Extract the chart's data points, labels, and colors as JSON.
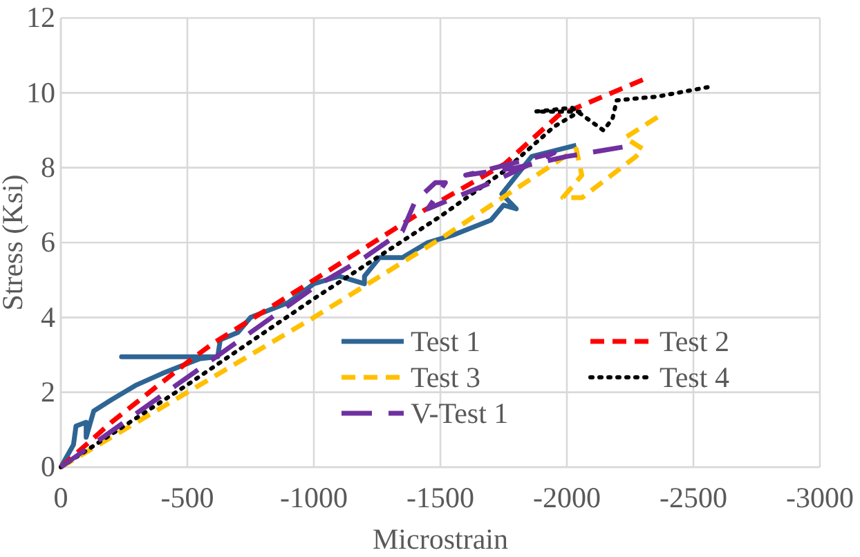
{
  "chart_data": {
    "type": "line",
    "xlabel": "Microstrain",
    "ylabel": "Stress (Ksi)",
    "xlim": [
      0,
      -3000
    ],
    "xticks": [
      0,
      -500,
      -1000,
      -1500,
      -2000,
      -2500,
      -3000
    ],
    "ylim": [
      0,
      12
    ],
    "yticks": [
      0,
      2,
      4,
      6,
      8,
      10,
      12
    ],
    "grid": true,
    "legend": "bottom right",
    "marker": "none",
    "series": [
      {
        "name": "Test 1",
        "color": "#2e6594",
        "line_style": "solid",
        "x": [
          0,
          -50,
          -60,
          -100,
          -100,
          -130,
          -200,
          -300,
          -400,
          -550,
          -620,
          -240,
          -620,
          -630,
          -700,
          -750,
          -900,
          -1000,
          -1100,
          -1150,
          -1200,
          -1200,
          -1260,
          -1350,
          -1450,
          -1550,
          -1700,
          -1750,
          -1800,
          -1743,
          -1861,
          -2037
        ],
        "values": [
          0,
          0.6,
          1.1,
          1.2,
          0.8,
          1.5,
          1.8,
          2.2,
          2.5,
          2.9,
          2.95,
          2.95,
          2.95,
          3.4,
          3.6,
          4.0,
          4.4,
          4.9,
          5.1,
          5.0,
          4.9,
          5.1,
          5.6,
          5.6,
          6.0,
          6.2,
          6.6,
          7.0,
          6.9,
          7.3,
          8.3,
          8.6
        ]
      },
      {
        "name": "Test 2",
        "color": "#ff0000",
        "line_style": "dashed",
        "x": [
          0,
          -200,
          -500,
          -600,
          -1000,
          -1433,
          -1754,
          -1967,
          -2300
        ],
        "values": [
          0,
          1.2,
          2.8,
          3.3,
          5.0,
          6.85,
          8.1,
          9.4,
          10.35
        ]
      },
      {
        "name": "Test 3",
        "color": "#ffc000",
        "line_style": "dashed",
        "x": [
          0,
          -500,
          -1000,
          -1500,
          -2037,
          -2059,
          -1984,
          -2060,
          -2273,
          -2300,
          -2230,
          -2358
        ],
        "values": [
          0,
          2.0,
          4.0,
          6.1,
          8.5,
          7.8,
          7.2,
          7.2,
          8.3,
          8.5,
          8.8,
          9.35
        ]
      },
      {
        "name": "Test 4",
        "color": "#000000",
        "line_style": "dotted",
        "x": [
          0,
          -500,
          -1000,
          -1500,
          -1750,
          -1950,
          -2050,
          -1877,
          -2021,
          -2144,
          -2180,
          -2197,
          -2358,
          -2556
        ],
        "values": [
          0,
          2.2,
          4.5,
          6.7,
          7.9,
          9.1,
          9.5,
          9.5,
          9.6,
          9.0,
          9.3,
          9.8,
          9.9,
          10.15
        ]
      },
      {
        "name": "V-Test 1",
        "color": "#7030a0",
        "line_style": "longdash",
        "x": [
          0,
          -500,
          -1000,
          -1200,
          -1350,
          -1400,
          -1480,
          -1520,
          -1450,
          -1700,
          -1950,
          -1600,
          -1800,
          -2000,
          -2220
        ],
        "values": [
          0,
          2.4,
          4.8,
          5.6,
          6.3,
          7.1,
          7.6,
          7.6,
          6.9,
          7.6,
          8.4,
          7.8,
          8.0,
          8.3,
          8.55
        ]
      }
    ]
  }
}
